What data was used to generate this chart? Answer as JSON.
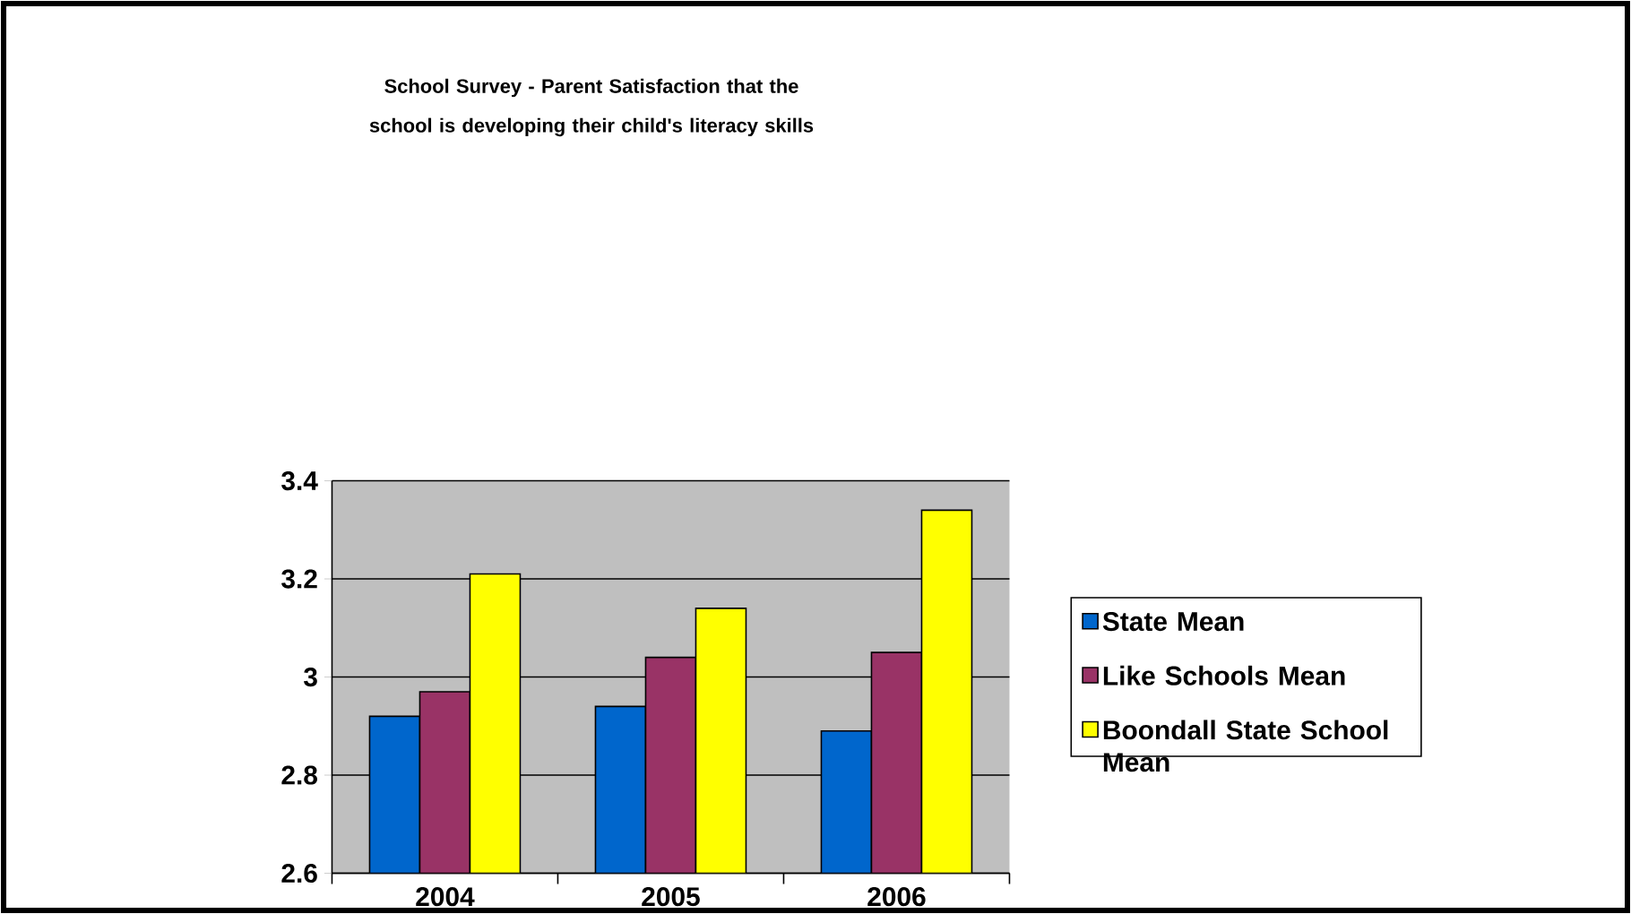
{
  "chart_data": {
    "type": "bar",
    "title": "School Survey - Parent Satisfaction that the school is developing their child's literacy skills",
    "categories": [
      "2004",
      "2005",
      "2006"
    ],
    "series": [
      {
        "name": "State Mean",
        "color": "#0066cc",
        "values": [
          2.92,
          2.94,
          2.89
        ]
      },
      {
        "name": "Like Schools Mean",
        "color": "#993366",
        "values": [
          2.97,
          3.04,
          3.05
        ]
      },
      {
        "name": "Boondall State School Mean",
        "color": "#ffff00",
        "values": [
          3.21,
          3.14,
          3.34
        ]
      }
    ],
    "ylim": [
      2.6,
      3.4
    ],
    "yticks": [
      2.6,
      2.8,
      3,
      3.2,
      3.4
    ],
    "grid": "y",
    "legend": "right"
  }
}
